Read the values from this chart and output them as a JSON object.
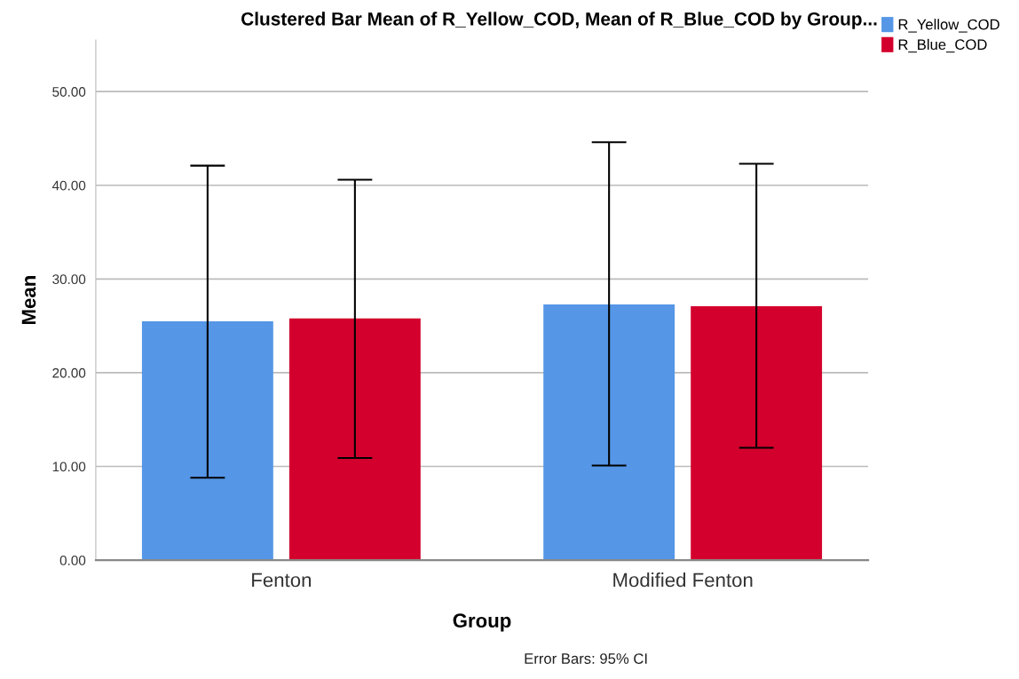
{
  "chart_data": {
    "type": "bar",
    "title": "Clustered Bar Mean of R_Yellow_COD, Mean of R_Blue_COD by Group...",
    "xlabel": "Group",
    "ylabel": "Mean",
    "categories": [
      "Fenton",
      "Modified Fenton"
    ],
    "series": [
      {
        "name": "R_Yellow_COD",
        "color": "#5596e6",
        "values": [
          25.5,
          27.3
        ],
        "errors": [
          [
            8.8,
            42.1
          ],
          [
            10.1,
            44.6
          ]
        ]
      },
      {
        "name": "R_Blue_COD",
        "color": "#d3002d",
        "values": [
          25.8,
          27.1
        ],
        "errors": [
          [
            10.9,
            40.6
          ],
          [
            12.0,
            42.3
          ]
        ]
      }
    ],
    "ylim": [
      0,
      55.5
    ],
    "yticks": [
      {
        "value": 0,
        "label": "0.00"
      },
      {
        "value": 10,
        "label": "10.00"
      },
      {
        "value": 20,
        "label": "20.00"
      },
      {
        "value": 30,
        "label": "30.00"
      },
      {
        "value": 40,
        "label": "40.00"
      },
      {
        "value": 50,
        "label": "50.00"
      }
    ],
    "grid": "y",
    "legend": "top right",
    "annotations": [
      "Error Bars: 95% CI"
    ]
  }
}
